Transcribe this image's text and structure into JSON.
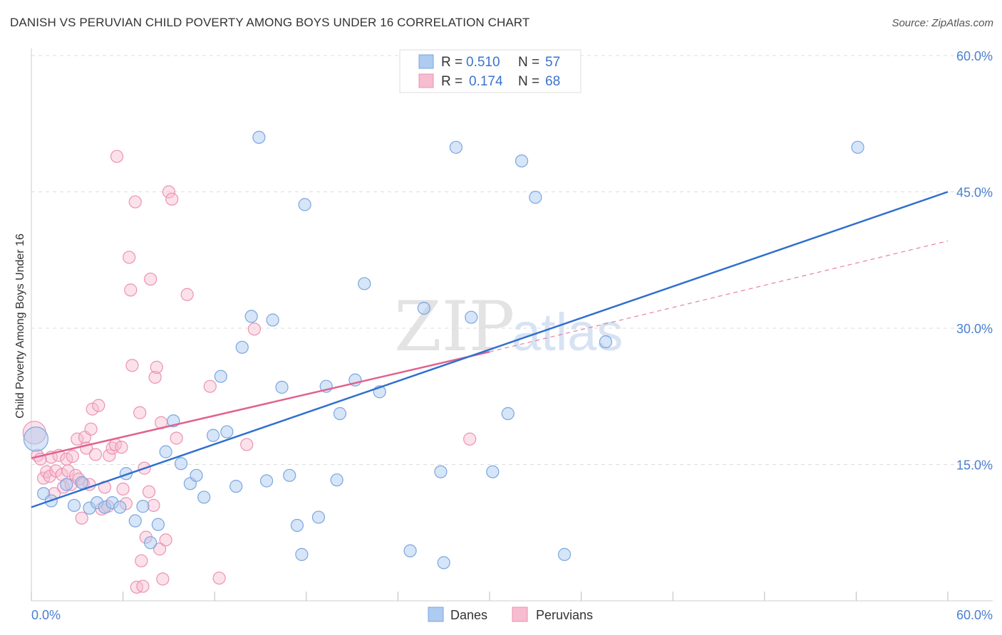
{
  "title": "DANISH VS PERUVIAN CHILD POVERTY AMONG BOYS UNDER 16 CORRELATION CHART",
  "source": "Source: ZipAtlas.com",
  "watermark": {
    "zip": "ZIP",
    "atlas": "atlas"
  },
  "colors": {
    "danes_fill": "#aecbf0",
    "danes_stroke": "#7aa6e0",
    "danes_line": "#2f6fcf",
    "peru_fill": "#f6bcd0",
    "peru_stroke": "#ec92b2",
    "peru_line": "#e0628f",
    "grid": "#dddddd",
    "axis_label": "#4a7fd0"
  },
  "legend": {
    "rows": [
      {
        "r_label": "R =",
        "r_value": "0.510",
        "n_label": "N =",
        "n_value": "57"
      },
      {
        "r_label": "R =",
        "r_value": "0.174",
        "n_label": "N =",
        "n_value": "68"
      }
    ]
  },
  "bottom_legend": {
    "danes": "Danes",
    "peruvians": "Peruvians"
  },
  "chart_data": {
    "type": "scatter",
    "title": "DANISH VS PERUVIAN CHILD POVERTY AMONG BOYS UNDER 16 CORRELATION CHART",
    "xlabel": "",
    "ylabel": "Child Poverty Among Boys Under 16",
    "xlim": [
      0,
      60
    ],
    "ylim": [
      0,
      60
    ],
    "x_tick_labels": [
      "0.0%",
      "60.0%"
    ],
    "y_ticks": [
      15,
      30,
      45,
      60
    ],
    "y_tick_labels": [
      "15.0%",
      "30.0%",
      "45.0%",
      "60.0%"
    ],
    "grid": true,
    "series": [
      {
        "name": "Danes",
        "r": 0.51,
        "n": 57,
        "trend": {
          "x": [
            0,
            60
          ],
          "y": [
            10.3,
            45.0
          ],
          "style": "solid"
        },
        "points": [
          {
            "x": 0.3,
            "y": 17.8,
            "big": true
          },
          {
            "x": 0.8,
            "y": 11.8
          },
          {
            "x": 1.3,
            "y": 11.0
          },
          {
            "x": 2.3,
            "y": 12.8
          },
          {
            "x": 2.8,
            "y": 10.5
          },
          {
            "x": 3.3,
            "y": 13.0
          },
          {
            "x": 3.8,
            "y": 10.2
          },
          {
            "x": 4.3,
            "y": 10.8
          },
          {
            "x": 4.8,
            "y": 10.3
          },
          {
            "x": 5.3,
            "y": 10.8
          },
          {
            "x": 5.8,
            "y": 10.3
          },
          {
            "x": 6.2,
            "y": 14.0
          },
          {
            "x": 6.8,
            "y": 8.8
          },
          {
            "x": 7.3,
            "y": 10.4
          },
          {
            "x": 7.8,
            "y": 6.4
          },
          {
            "x": 8.3,
            "y": 8.4
          },
          {
            "x": 8.8,
            "y": 16.4
          },
          {
            "x": 9.3,
            "y": 19.8
          },
          {
            "x": 9.8,
            "y": 15.1
          },
          {
            "x": 10.4,
            "y": 12.9
          },
          {
            "x": 10.8,
            "y": 13.8
          },
          {
            "x": 11.3,
            "y": 11.4
          },
          {
            "x": 11.9,
            "y": 18.2
          },
          {
            "x": 12.4,
            "y": 24.7
          },
          {
            "x": 12.8,
            "y": 18.6
          },
          {
            "x": 13.4,
            "y": 12.6
          },
          {
            "x": 13.8,
            "y": 27.9
          },
          {
            "x": 14.4,
            "y": 31.3
          },
          {
            "x": 14.9,
            "y": 51.0
          },
          {
            "x": 15.4,
            "y": 13.2
          },
          {
            "x": 15.8,
            "y": 30.9
          },
          {
            "x": 16.4,
            "y": 23.5
          },
          {
            "x": 16.9,
            "y": 13.8
          },
          {
            "x": 17.4,
            "y": 8.3
          },
          {
            "x": 17.7,
            "y": 5.1
          },
          {
            "x": 17.9,
            "y": 43.6
          },
          {
            "x": 18.8,
            "y": 9.2
          },
          {
            "x": 19.3,
            "y": 23.6
          },
          {
            "x": 20.0,
            "y": 13.3
          },
          {
            "x": 20.2,
            "y": 20.6
          },
          {
            "x": 21.2,
            "y": 24.3
          },
          {
            "x": 21.8,
            "y": 34.9
          },
          {
            "x": 22.8,
            "y": 23.0
          },
          {
            "x": 24.8,
            "y": 5.5
          },
          {
            "x": 25.7,
            "y": 32.2
          },
          {
            "x": 26.8,
            "y": 14.2
          },
          {
            "x": 27.0,
            "y": 4.2
          },
          {
            "x": 27.8,
            "y": 49.9
          },
          {
            "x": 28.8,
            "y": 31.2
          },
          {
            "x": 30.2,
            "y": 14.2
          },
          {
            "x": 31.2,
            "y": 20.6
          },
          {
            "x": 32.1,
            "y": 48.4
          },
          {
            "x": 33.0,
            "y": 44.4
          },
          {
            "x": 34.9,
            "y": 5.1
          },
          {
            "x": 37.6,
            "y": 28.5
          },
          {
            "x": 54.1,
            "y": 49.9
          }
        ]
      },
      {
        "name": "Peruvians",
        "r": 0.174,
        "n": 68,
        "trend": {
          "x": [
            0,
            30
          ],
          "y": [
            15.7,
            27.4
          ],
          "style": "solid",
          "extension": {
            "x": [
              30,
              60
            ],
            "y": [
              27.4,
              39.6
            ],
            "style": "dashed"
          }
        },
        "points": [
          {
            "x": 0.2,
            "y": 18.5,
            "big": true
          },
          {
            "x": 0.4,
            "y": 16.0
          },
          {
            "x": 0.6,
            "y": 15.6
          },
          {
            "x": 0.8,
            "y": 13.5
          },
          {
            "x": 1.0,
            "y": 14.2
          },
          {
            "x": 1.2,
            "y": 13.7
          },
          {
            "x": 1.3,
            "y": 15.8
          },
          {
            "x": 1.5,
            "y": 11.8
          },
          {
            "x": 1.6,
            "y": 14.3
          },
          {
            "x": 1.8,
            "y": 16.0
          },
          {
            "x": 2.0,
            "y": 13.9
          },
          {
            "x": 2.1,
            "y": 12.5
          },
          {
            "x": 2.3,
            "y": 15.6
          },
          {
            "x": 2.4,
            "y": 14.3
          },
          {
            "x": 2.6,
            "y": 12.8
          },
          {
            "x": 2.7,
            "y": 15.9
          },
          {
            "x": 2.9,
            "y": 13.8
          },
          {
            "x": 3.0,
            "y": 17.8
          },
          {
            "x": 3.1,
            "y": 13.4
          },
          {
            "x": 3.3,
            "y": 9.1
          },
          {
            "x": 3.4,
            "y": 12.9
          },
          {
            "x": 3.5,
            "y": 18.0
          },
          {
            "x": 3.6,
            "y": 16.8
          },
          {
            "x": 3.8,
            "y": 12.8
          },
          {
            "x": 3.9,
            "y": 18.9
          },
          {
            "x": 4.0,
            "y": 21.1
          },
          {
            "x": 4.2,
            "y": 16.1
          },
          {
            "x": 4.4,
            "y": 21.5
          },
          {
            "x": 4.6,
            "y": 10.1
          },
          {
            "x": 4.8,
            "y": 12.5
          },
          {
            "x": 5.0,
            "y": 10.4
          },
          {
            "x": 5.1,
            "y": 16.0
          },
          {
            "x": 5.3,
            "y": 16.8
          },
          {
            "x": 5.5,
            "y": 17.2
          },
          {
            "x": 5.6,
            "y": 48.9
          },
          {
            "x": 5.9,
            "y": 16.9
          },
          {
            "x": 6.0,
            "y": 12.3
          },
          {
            "x": 6.2,
            "y": 10.7
          },
          {
            "x": 6.4,
            "y": 37.8
          },
          {
            "x": 6.5,
            "y": 34.2
          },
          {
            "x": 6.6,
            "y": 25.9
          },
          {
            "x": 6.8,
            "y": 43.9
          },
          {
            "x": 6.9,
            "y": 1.5
          },
          {
            "x": 7.1,
            "y": 20.7
          },
          {
            "x": 7.2,
            "y": 4.4
          },
          {
            "x": 7.3,
            "y": 1.6
          },
          {
            "x": 7.4,
            "y": 14.6
          },
          {
            "x": 7.5,
            "y": 7.0
          },
          {
            "x": 7.7,
            "y": 12.0
          },
          {
            "x": 7.8,
            "y": 35.4
          },
          {
            "x": 8.0,
            "y": 10.5
          },
          {
            "x": 8.1,
            "y": 24.6
          },
          {
            "x": 8.2,
            "y": 25.7
          },
          {
            "x": 8.4,
            "y": 5.7
          },
          {
            "x": 8.5,
            "y": 19.6
          },
          {
            "x": 8.6,
            "y": 2.4
          },
          {
            "x": 8.8,
            "y": 6.7
          },
          {
            "x": 9.0,
            "y": 45.0
          },
          {
            "x": 9.2,
            "y": 44.2
          },
          {
            "x": 9.5,
            "y": 17.9
          },
          {
            "x": 10.2,
            "y": 33.7
          },
          {
            "x": 11.7,
            "y": 23.6
          },
          {
            "x": 12.3,
            "y": 2.5
          },
          {
            "x": 14.1,
            "y": 17.2
          },
          {
            "x": 14.6,
            "y": 29.9
          },
          {
            "x": 28.7,
            "y": 17.8
          }
        ]
      }
    ]
  }
}
